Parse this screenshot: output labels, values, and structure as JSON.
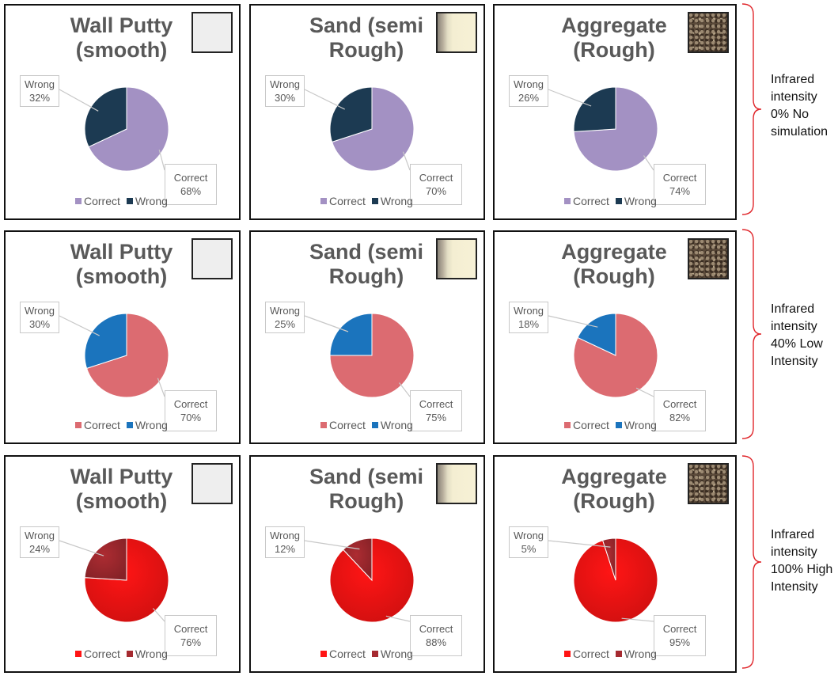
{
  "chart_data": [
    {
      "type": "pie",
      "title": "Wall Putty (smooth)",
      "row": 0,
      "col": 0,
      "texture": "smooth",
      "categories": [
        "Correct",
        "Wrong"
      ],
      "values": [
        68,
        32
      ],
      "colors": [
        "#a391c3",
        "#1c3a52"
      ]
    },
    {
      "type": "pie",
      "title": "Sand (semi Rough)",
      "row": 0,
      "col": 1,
      "texture": "sand",
      "categories": [
        "Correct",
        "Wrong"
      ],
      "values": [
        70,
        30
      ],
      "colors": [
        "#a391c3",
        "#1c3a52"
      ]
    },
    {
      "type": "pie",
      "title": "Aggregate (Rough)",
      "row": 0,
      "col": 2,
      "texture": "aggregate",
      "categories": [
        "Correct",
        "Wrong"
      ],
      "values": [
        74,
        26
      ],
      "colors": [
        "#a391c3",
        "#1c3a52"
      ]
    },
    {
      "type": "pie",
      "title": "Wall Putty (smooth)",
      "row": 1,
      "col": 0,
      "texture": "smooth",
      "categories": [
        "Correct",
        "Wrong"
      ],
      "values": [
        70,
        30
      ],
      "colors": [
        "#dc6b71",
        "#1b74bd"
      ]
    },
    {
      "type": "pie",
      "title": "Sand (semi Rough)",
      "row": 1,
      "col": 1,
      "texture": "sand",
      "categories": [
        "Correct",
        "Wrong"
      ],
      "values": [
        75,
        25
      ],
      "colors": [
        "#dc6b71",
        "#1b74bd"
      ]
    },
    {
      "type": "pie",
      "title": "Aggregate (Rough)",
      "row": 1,
      "col": 2,
      "texture": "aggregate",
      "categories": [
        "Correct",
        "Wrong"
      ],
      "values": [
        82,
        18
      ],
      "colors": [
        "#dc6b71",
        "#1b74bd"
      ]
    },
    {
      "type": "pie",
      "title": "Wall Putty (smooth)",
      "row": 2,
      "col": 0,
      "texture": "smooth",
      "categories": [
        "Correct",
        "Wrong"
      ],
      "values": [
        76,
        24
      ],
      "colors": [
        "#ff1414",
        "#a52a30"
      ]
    },
    {
      "type": "pie",
      "title": "Sand (semi Rough)",
      "row": 2,
      "col": 1,
      "texture": "sand",
      "categories": [
        "Correct",
        "Wrong"
      ],
      "values": [
        88,
        12
      ],
      "colors": [
        "#ff1414",
        "#a52a30"
      ]
    },
    {
      "type": "pie",
      "title": "Aggregate (Rough)",
      "row": 2,
      "col": 2,
      "texture": "aggregate",
      "categories": [
        "Correct",
        "Wrong"
      ],
      "values": [
        95,
        5
      ],
      "colors": [
        "#ff1414",
        "#a52a30"
      ]
    }
  ],
  "row_labels": [
    "Infrared intensity 0% No simulation",
    "Infrared intensity 40% Low Intensity",
    "Infrared intensity 100% High Intensity"
  ],
  "colors": {
    "brace": "#e0262b",
    "text": "#595959",
    "border": "#111111"
  }
}
